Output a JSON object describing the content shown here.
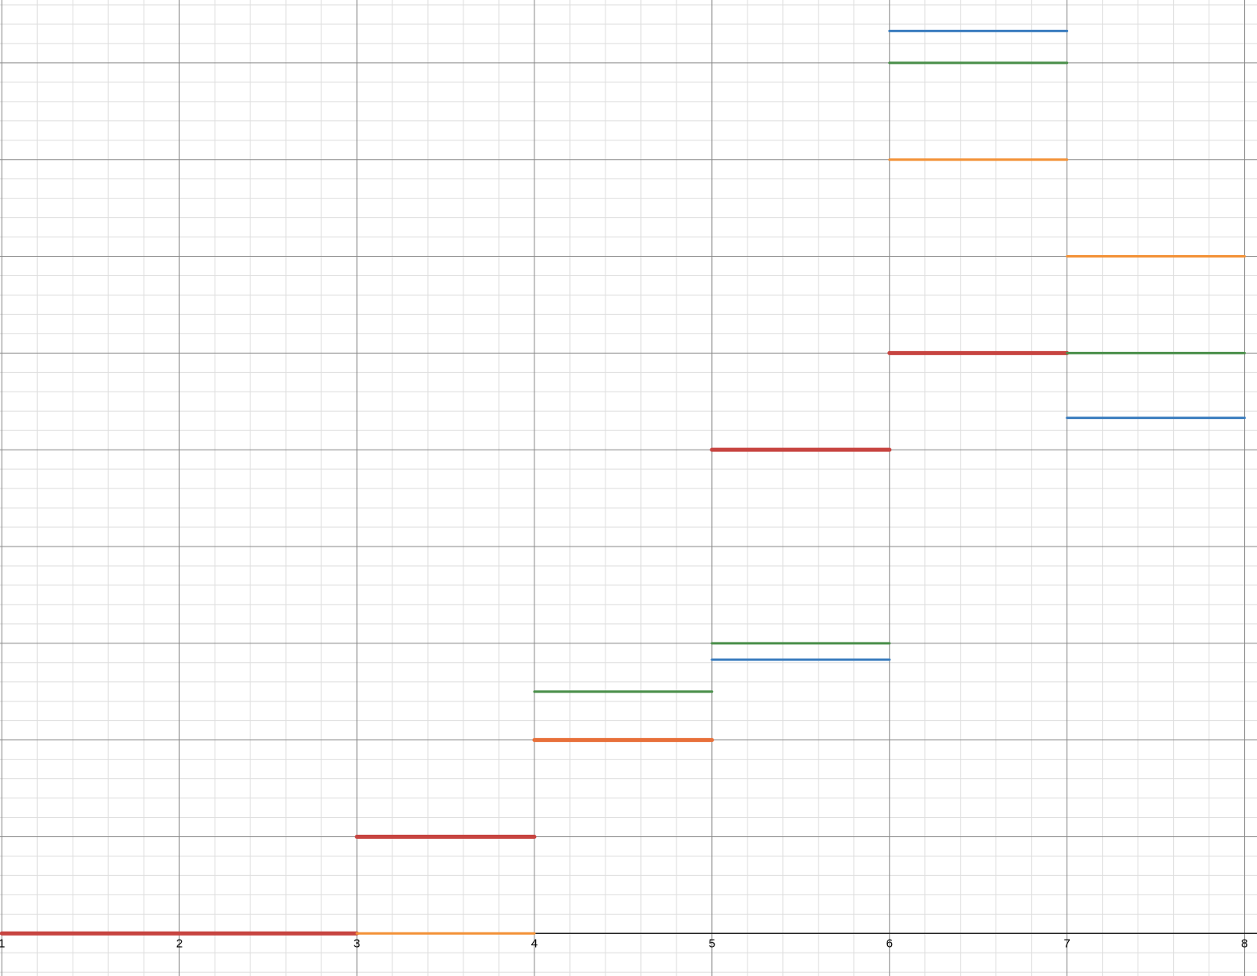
{
  "chart_data": {
    "type": "line",
    "title": "",
    "xlabel": "",
    "ylabel": "",
    "xlim": [
      0.99,
      8.07
    ],
    "ylim": [
      -0.44,
      9.65
    ],
    "grid": true,
    "x_ticks": [
      {
        "value": 1,
        "label": "1"
      },
      {
        "value": 2,
        "label": "2"
      },
      {
        "value": 3,
        "label": "3"
      },
      {
        "value": 4,
        "label": "4"
      },
      {
        "value": 5,
        "label": "5"
      },
      {
        "value": 6,
        "label": "6"
      },
      {
        "value": 7,
        "label": "7"
      },
      {
        "value": 8,
        "label": "8"
      }
    ],
    "series": [
      {
        "color": "#c74440",
        "emphasis": true,
        "segments": [
          {
            "x": [
              1,
              3
            ],
            "y": 0
          },
          {
            "x": [
              3,
              4
            ],
            "y": 1
          },
          {
            "x": [
              5,
              6
            ],
            "y": 5
          },
          {
            "x": [
              6,
              7
            ],
            "y": 6
          }
        ]
      },
      {
        "color": "#e8703a",
        "emphasis": true,
        "segments": [
          {
            "x": [
              4,
              5
            ],
            "y": 2
          }
        ]
      },
      {
        "color": "#f39238",
        "emphasis": false,
        "segments": [
          {
            "x": [
              3,
              4
            ],
            "y": 0
          },
          {
            "x": [
              6,
              7
            ],
            "y": 8
          },
          {
            "x": [
              7,
              8
            ],
            "y": 7
          }
        ]
      },
      {
        "color": "#4a8f4a",
        "emphasis": false,
        "segments": [
          {
            "x": [
              4,
              5
            ],
            "y": 2.5
          },
          {
            "x": [
              5,
              6
            ],
            "y": 3
          },
          {
            "x": [
              6,
              7
            ],
            "y": 9
          },
          {
            "x": [
              7,
              8
            ],
            "y": 6
          }
        ]
      },
      {
        "color": "#3b7dbf",
        "emphasis": false,
        "segments": [
          {
            "x": [
              5,
              6
            ],
            "y": 2.83
          },
          {
            "x": [
              6,
              7
            ],
            "y": 9.33
          },
          {
            "x": [
              7,
              8
            ],
            "y": 5.33
          }
        ]
      }
    ]
  }
}
